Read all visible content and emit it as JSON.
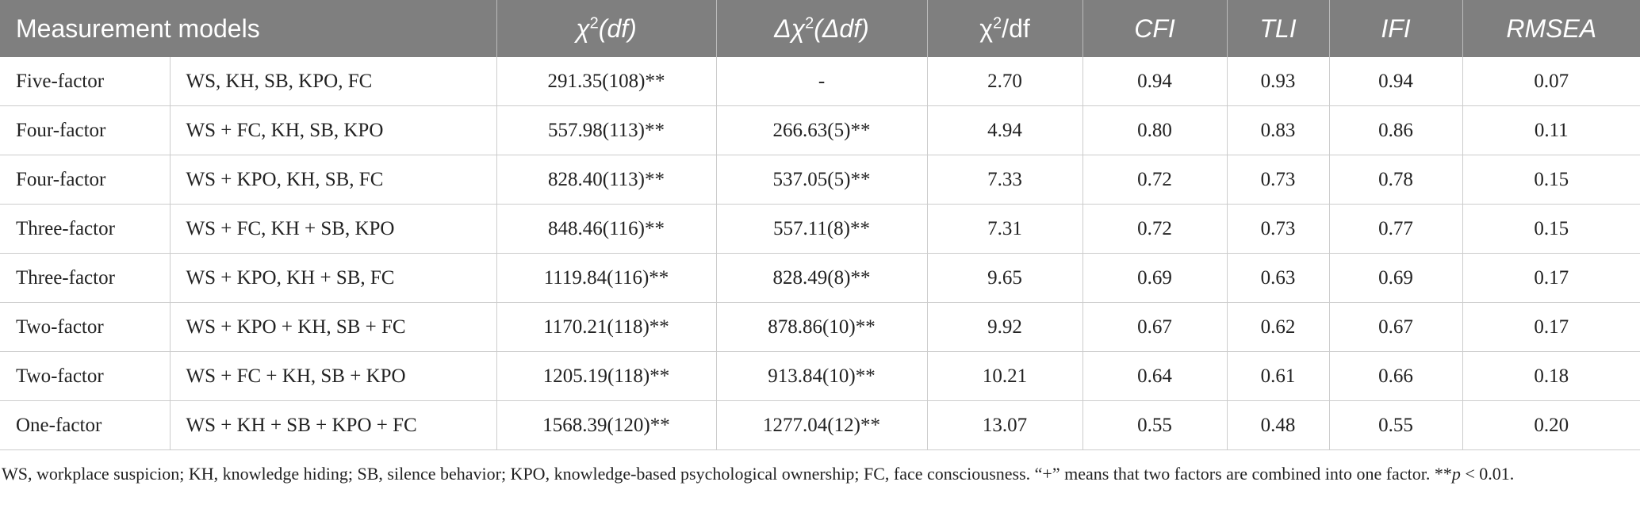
{
  "table": {
    "header": [
      {
        "text": "Measurement models"
      },
      {
        "base": "χ",
        "sup": "2",
        "rest": "(df)",
        "italic": true
      },
      {
        "base": "Δχ",
        "sup": "2",
        "rest": "(Δdf)",
        "italic": true
      },
      {
        "base": "χ",
        "sup": "2",
        "rest": "/df",
        "italic": false
      },
      {
        "text": "CFI",
        "italic": true
      },
      {
        "text": "TLI",
        "italic": true
      },
      {
        "text": "IFI",
        "italic": true
      },
      {
        "text": "RMSEA",
        "italic": true
      }
    ],
    "rows": [
      [
        "Five-factor",
        "WS, KH, SB, KPO, FC",
        "291.35(108)**",
        "-",
        "2.70",
        "0.94",
        "0.93",
        "0.94",
        "0.07"
      ],
      [
        "Four-factor",
        "WS + FC, KH, SB, KPO",
        "557.98(113)**",
        "266.63(5)**",
        "4.94",
        "0.80",
        "0.83",
        "0.86",
        "0.11"
      ],
      [
        "Four-factor",
        "WS + KPO, KH, SB, FC",
        "828.40(113)**",
        "537.05(5)**",
        "7.33",
        "0.72",
        "0.73",
        "0.78",
        "0.15"
      ],
      [
        "Three-factor",
        "WS + FC, KH + SB, KPO",
        "848.46(116)**",
        "557.11(8)**",
        "7.31",
        "0.72",
        "0.73",
        "0.77",
        "0.15"
      ],
      [
        "Three-factor",
        "WS + KPO, KH + SB, FC",
        "1119.84(116)**",
        "828.49(8)**",
        "9.65",
        "0.69",
        "0.63",
        "0.69",
        "0.17"
      ],
      [
        "Two-factor",
        "WS + KPO + KH, SB + FC",
        "1170.21(118)**",
        "878.86(10)**",
        "9.92",
        "0.67",
        "0.62",
        "0.67",
        "0.17"
      ],
      [
        "Two-factor",
        "WS + FC + KH, SB + KPO",
        "1205.19(118)**",
        "913.84(10)**",
        "10.21",
        "0.64",
        "0.61",
        "0.66",
        "0.18"
      ],
      [
        "One-factor",
        "WS + KH + SB + KPO + FC",
        "1568.39(120)**",
        "1277.04(12)**",
        "13.07",
        "0.55",
        "0.48",
        "0.55",
        "0.20"
      ]
    ],
    "footnote": {
      "text": "WS, workplace suspicion; KH, knowledge hiding; SB, silence behavior; KPO, knowledge-based psychological ownership; FC, face consciousness. “+” means that two factors are combined into one factor. **",
      "italic": "p",
      "rest": " < 0.01."
    }
  }
}
